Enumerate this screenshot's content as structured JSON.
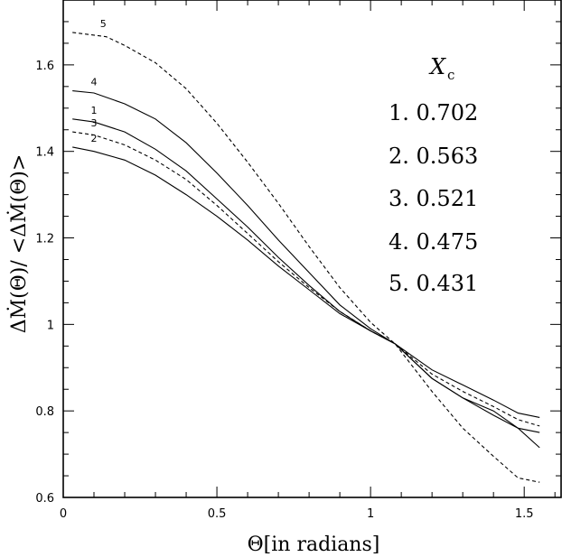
{
  "chart_data": {
    "type": "line",
    "xlabel": "Θ[in radians]",
    "ylabel": "ΔṀ(Θ)/ <ΔṀ(Θ)>",
    "xlim": [
      0,
      1.62
    ],
    "ylim": [
      0.6,
      1.75
    ],
    "xticks": [
      "0",
      "0.5",
      "1",
      "1.5"
    ],
    "yticks": [
      "0.6",
      "0.8",
      "1",
      "1.2",
      "1.4",
      "1.6"
    ],
    "xtick_values": [
      0,
      0.5,
      1,
      1.5
    ],
    "ytick_values": [
      0.6,
      0.8,
      1.0,
      1.2,
      1.4,
      1.6
    ],
    "legend": {
      "title": "X",
      "title_subscript": "c",
      "entries": [
        "1. 0.702",
        "2. 0.563",
        "3. 0.521",
        "4. 0.475",
        "5. 0.431"
      ]
    },
    "series": [
      {
        "label": "1",
        "style": "solid",
        "x": [
          0.03,
          0.1,
          0.2,
          0.3,
          0.4,
          0.5,
          0.6,
          0.7,
          0.8,
          0.9,
          1.0,
          1.08,
          1.2,
          1.3,
          1.4,
          1.48,
          1.55
        ],
        "y": [
          1.475,
          1.468,
          1.445,
          1.405,
          1.355,
          1.29,
          1.225,
          1.155,
          1.09,
          1.03,
          0.985,
          0.955,
          0.875,
          0.83,
          0.8,
          0.76,
          0.715
        ]
      },
      {
        "label": "2",
        "style": "solid",
        "x": [
          0.03,
          0.1,
          0.2,
          0.3,
          0.4,
          0.5,
          0.6,
          0.7,
          0.8,
          0.9,
          1.0,
          1.08,
          1.2,
          1.3,
          1.4,
          1.48,
          1.55
        ],
        "y": [
          1.41,
          1.4,
          1.38,
          1.345,
          1.3,
          1.25,
          1.195,
          1.135,
          1.08,
          1.025,
          0.985,
          0.955,
          0.895,
          0.86,
          0.825,
          0.795,
          0.785
        ]
      },
      {
        "label": "3",
        "style": "dashed",
        "x": [
          0.03,
          0.1,
          0.2,
          0.3,
          0.4,
          0.5,
          0.6,
          0.7,
          0.8,
          0.9,
          1.0,
          1.08,
          1.2,
          1.3,
          1.4,
          1.48,
          1.55
        ],
        "y": [
          1.445,
          1.438,
          1.415,
          1.38,
          1.335,
          1.275,
          1.21,
          1.145,
          1.085,
          1.03,
          0.985,
          0.955,
          0.885,
          0.845,
          0.81,
          0.78,
          0.765
        ]
      },
      {
        "label": "4",
        "style": "solid",
        "x": [
          0.03,
          0.1,
          0.2,
          0.3,
          0.4,
          0.5,
          0.6,
          0.7,
          0.8,
          0.9,
          1.0,
          1.08,
          1.2,
          1.3,
          1.4,
          1.48,
          1.55
        ],
        "y": [
          1.54,
          1.535,
          1.51,
          1.475,
          1.42,
          1.35,
          1.275,
          1.195,
          1.12,
          1.045,
          0.99,
          0.955,
          0.875,
          0.83,
          0.79,
          0.76,
          0.75
        ]
      },
      {
        "label": "5",
        "style": "dashed",
        "x": [
          0.03,
          0.14,
          0.2,
          0.3,
          0.4,
          0.5,
          0.6,
          0.7,
          0.8,
          0.9,
          1.0,
          1.08,
          1.2,
          1.3,
          1.4,
          1.48,
          1.55
        ],
        "y": [
          1.675,
          1.665,
          1.645,
          1.605,
          1.545,
          1.465,
          1.375,
          1.28,
          1.18,
          1.085,
          1.005,
          0.955,
          0.845,
          0.76,
          0.695,
          0.645,
          0.635
        ]
      }
    ]
  }
}
